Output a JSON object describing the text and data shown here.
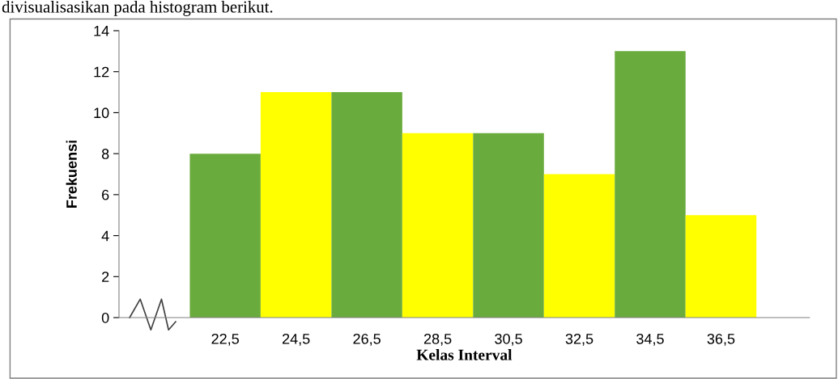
{
  "chart_data": {
    "type": "bar",
    "categories": [
      "22,5",
      "24,5",
      "26,5",
      "28,5",
      "30,5",
      "32,5",
      "34,5",
      "36,5"
    ],
    "values": [
      8,
      11,
      11,
      9,
      9,
      7,
      13,
      5
    ],
    "colors": [
      "#6aab3e",
      "#ffff00",
      "#6aab3e",
      "#ffff00",
      "#6aab3e",
      "#ffff00",
      "#6aab3e",
      "#ffff00"
    ],
    "ylim": [
      0,
      14
    ],
    "yticks": [
      0,
      2,
      4,
      6,
      8,
      10,
      12,
      14
    ],
    "xlabel": "Kelas Interval",
    "ylabel": "Frekuensi",
    "annotations": [
      "divisualisasikan pada histogram berikut."
    ],
    "grid": false,
    "legend": false
  }
}
